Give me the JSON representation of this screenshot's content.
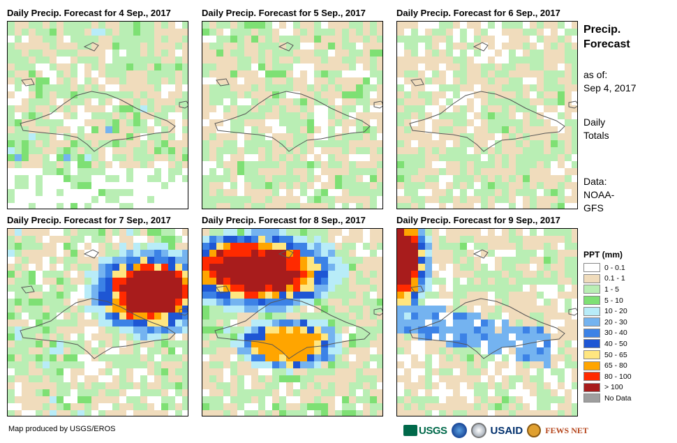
{
  "panels": [
    {
      "title": "Daily Precip. Forecast for 4 Sep., 2017",
      "pattern": "day4"
    },
    {
      "title": "Daily Precip. Forecast for 5 Sep., 2017",
      "pattern": "day5"
    },
    {
      "title": "Daily Precip. Forecast for 6 Sep., 2017",
      "pattern": "day6"
    },
    {
      "title": "Daily Precip. Forecast for 7 Sep., 2017",
      "pattern": "day7"
    },
    {
      "title": "Daily Precip. Forecast for 8 Sep., 2017",
      "pattern": "day8"
    },
    {
      "title": "Daily Precip. Forecast for 9 Sep., 2017",
      "pattern": "day9"
    }
  ],
  "sidebar": {
    "title_line1": "Precip.",
    "title_line2": "Forecast",
    "asof_label": "as of:",
    "asof_date": "Sep 4, 2017",
    "daily_line1": "Daily",
    "daily_line2": "Totals",
    "data_line1": "Data:",
    "data_line2": "NOAA-",
    "data_line3": "GFS"
  },
  "legend": {
    "title": "PPT (mm)",
    "items": [
      {
        "label": "0 - 0.1",
        "color": "#ffffff"
      },
      {
        "label": "0.1 - 1",
        "color": "#f0dcbc"
      },
      {
        "label": "1 - 5",
        "color": "#b9eeb4"
      },
      {
        "label": "5 - 10",
        "color": "#7ee074"
      },
      {
        "label": "10 - 20",
        "color": "#b8ecf8"
      },
      {
        "label": "20 - 30",
        "color": "#74b3f0"
      },
      {
        "label": "30 - 40",
        "color": "#3c82e6"
      },
      {
        "label": "40 - 50",
        "color": "#1e56d4"
      },
      {
        "label": "50 - 65",
        "color": "#ffe680"
      },
      {
        "label": "65 - 80",
        "color": "#ffa500"
      },
      {
        "label": "80 - 100",
        "color": "#ff2a00"
      },
      {
        "label": "> 100",
        "color": "#a81c1c"
      },
      {
        "label": "No Data",
        "color": "#9e9e9e"
      }
    ]
  },
  "footer": {
    "credit": "Map produced by USGS/EROS",
    "logos": {
      "usgs": "USGS",
      "usaid_main": "USAID",
      "fews": "FEWS NET"
    }
  }
}
